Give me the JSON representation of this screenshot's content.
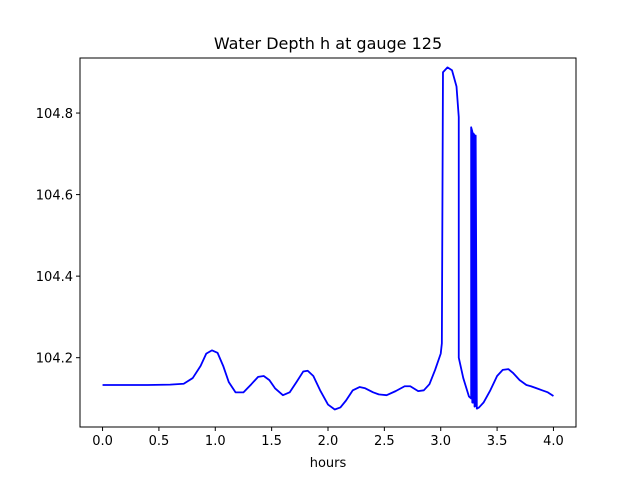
{
  "chart_data": {
    "type": "line",
    "title": "Water Depth h at gauge 125",
    "xlabel": "hours",
    "ylabel": "",
    "xlim": [
      -0.2,
      4.2
    ],
    "ylim": [
      104.03,
      104.935
    ],
    "xticks": [
      0.0,
      0.5,
      1.0,
      1.5,
      2.0,
      2.5,
      3.0,
      3.5,
      4.0
    ],
    "xtick_labels": [
      "0.0",
      "0.5",
      "1.0",
      "1.5",
      "2.0",
      "2.5",
      "3.0",
      "3.5",
      "4.0"
    ],
    "yticks": [
      104.2,
      104.4,
      104.6,
      104.8
    ],
    "ytick_labels": [
      "104.2",
      "104.4",
      "104.6",
      "104.8"
    ],
    "grid": false,
    "legend": "none",
    "series": [
      {
        "color": "#0000ff",
        "x": [
          0.0,
          0.2,
          0.4,
          0.6,
          0.72,
          0.8,
          0.87,
          0.92,
          0.97,
          1.02,
          1.07,
          1.12,
          1.18,
          1.25,
          1.32,
          1.38,
          1.43,
          1.48,
          1.53,
          1.6,
          1.66,
          1.72,
          1.78,
          1.82,
          1.87,
          1.93,
          2.0,
          2.06,
          2.11,
          2.16,
          2.22,
          2.28,
          2.33,
          2.4,
          2.45,
          2.52,
          2.6,
          2.68,
          2.73,
          2.8,
          2.85,
          2.9,
          2.95,
          3.0,
          3.01,
          3.02,
          3.06,
          3.1,
          3.14,
          3.16,
          3.16,
          3.2,
          3.25,
          3.27,
          3.27,
          3.28,
          3.28,
          3.29,
          3.29,
          3.3,
          3.3,
          3.31,
          3.31,
          3.32,
          3.34,
          3.38,
          3.44,
          3.5,
          3.55,
          3.6,
          3.64,
          3.7,
          3.76,
          3.8,
          3.85,
          3.9,
          3.95,
          4.0
        ],
        "y": [
          104.133,
          104.133,
          104.133,
          104.134,
          104.136,
          104.15,
          104.18,
          104.21,
          104.218,
          104.212,
          104.18,
          104.14,
          104.115,
          104.115,
          104.135,
          104.153,
          104.155,
          104.145,
          104.125,
          104.108,
          104.115,
          104.14,
          104.166,
          104.168,
          104.155,
          104.12,
          104.085,
          104.073,
          104.078,
          104.095,
          104.12,
          104.128,
          104.125,
          104.115,
          104.11,
          104.108,
          104.118,
          104.13,
          104.13,
          104.118,
          104.12,
          104.135,
          104.17,
          104.21,
          104.235,
          104.9,
          104.912,
          104.905,
          104.865,
          104.79,
          104.2,
          104.15,
          104.105,
          104.1,
          104.765,
          104.755,
          104.09,
          104.09,
          104.75,
          104.745,
          104.08,
          104.082,
          104.745,
          104.075,
          104.078,
          104.09,
          104.12,
          104.155,
          104.17,
          104.172,
          104.163,
          104.145,
          104.133,
          104.13,
          104.125,
          104.12,
          104.115,
          104.106
        ]
      }
    ]
  }
}
